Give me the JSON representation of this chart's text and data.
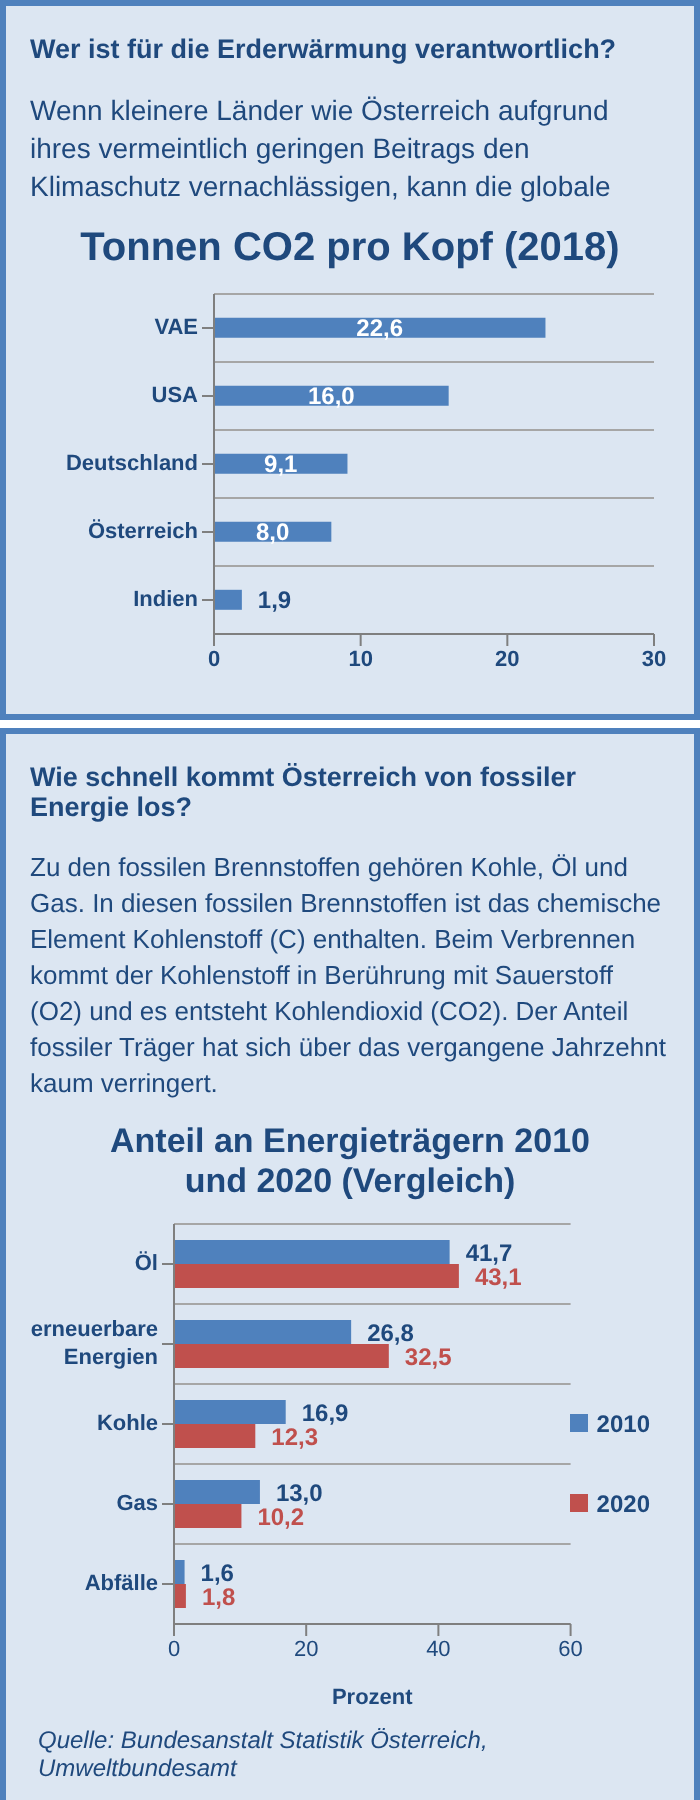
{
  "chart_data": [
    {
      "type": "bar",
      "orientation": "horizontal",
      "title": "Tonnen CO2 pro Kopf (2018)",
      "annotations": [
        "Wer ist für die Erderwärmung verantwortlich?",
        "Wenn kleinere Länder wie Österreich aufgrund ihres vermeintlich geringen Beitrags den Klimaschutz vernachlässigen, kann die globale"
      ],
      "categories": [
        "VAE",
        "USA",
        "Deutschland",
        "Österreich",
        "Indien"
      ],
      "series": [
        {
          "color": "#4f81bd",
          "values": [
            22.6,
            16.0,
            9.1,
            8.0,
            1.9
          ],
          "value_labels": [
            "22,6",
            "16,0",
            "9,1",
            "8,0",
            "1,9"
          ]
        }
      ],
      "xlim": [
        0,
        30
      ],
      "xticks": [
        0,
        10,
        20,
        30
      ],
      "grid": "y",
      "legend": false
    },
    {
      "type": "bar",
      "orientation": "horizontal",
      "title": "Anteil an Energieträgern 2010 und 2020 (Vergleich)",
      "xlabel": "Prozent",
      "annotations": [
        "Wie schnell kommt Österreich von fossiler Energie los?",
        "Zu den fossilen Brennstoffen gehören Kohle, Öl und Gas. In diesen fossilen Brennstoffen ist das chemische Element Kohlenstoff (C) enthalten. Beim Verbrennen kommt der Kohlenstoff in Berührung mit Sauerstoff (O2) und es entsteht Kohlendioxid (CO2). Der Anteil fossiler Träger hat sich über das vergangene Jahrzehnt kaum verringert.",
        "Quelle: Bundesanstalt Statistik Österreich, Umweltbundesamt"
      ],
      "categories": [
        "Öl",
        "erneuerbare Energien",
        "Kohle",
        "Gas",
        "Abfälle"
      ],
      "series": [
        {
          "name": "2010",
          "color": "#4f81bd",
          "values": [
            41.7,
            26.8,
            16.9,
            13.0,
            1.6
          ],
          "value_labels": [
            "41,7",
            "26,8",
            "16,9",
            "13,0",
            "1,6"
          ]
        },
        {
          "name": "2020",
          "color": "#c0504d",
          "values": [
            43.1,
            32.5,
            12.3,
            10.2,
            1.8
          ],
          "value_labels": [
            "43,1",
            "32,5",
            "12,3",
            "10,2",
            "1,8"
          ]
        }
      ],
      "xlim": [
        0,
        60
      ],
      "xticks": [
        0,
        20,
        40,
        60
      ],
      "grid": "y",
      "legend": "right"
    }
  ]
}
